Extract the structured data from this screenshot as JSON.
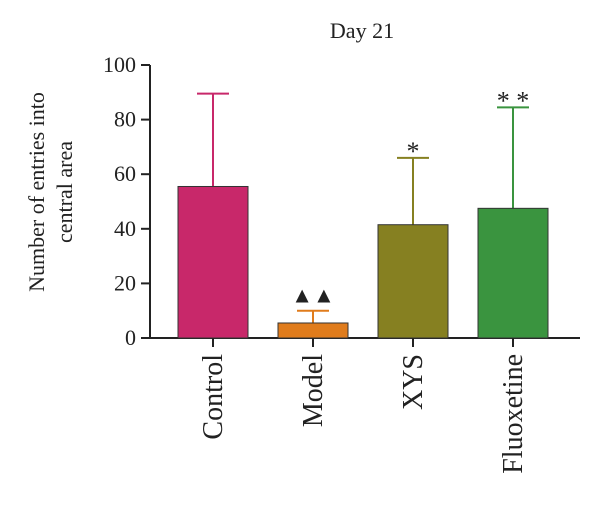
{
  "chart_data": {
    "type": "bar",
    "title": "Day 21",
    "ylabel_lines": [
      "Number of entries into",
      "central area"
    ],
    "ylim": [
      0,
      100
    ],
    "yticks": [
      0,
      20,
      40,
      60,
      80,
      100
    ],
    "ytick_labels": [
      "0",
      "20",
      "40",
      "60",
      "80",
      "100"
    ],
    "categories": [
      "Control",
      "Model",
      "XYS",
      "Fluoxetine"
    ],
    "values": [
      55.5,
      5.5,
      41.5,
      47.5
    ],
    "error_upper": [
      89.5,
      10,
      66,
      84.5
    ],
    "colors": [
      "#c8286a",
      "#e07c1c",
      "#868021",
      "#3a943f"
    ],
    "annotations": [
      "",
      "▲▲",
      "*",
      "* *"
    ],
    "grid": false,
    "legend": "none"
  }
}
